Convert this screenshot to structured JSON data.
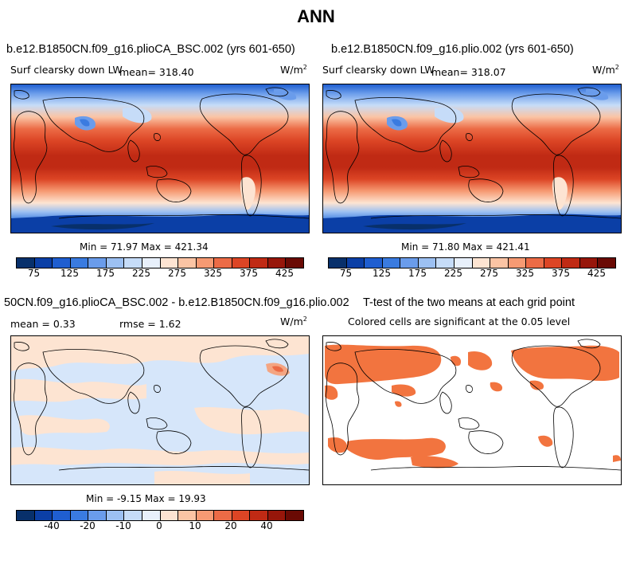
{
  "page": {
    "title": "ANN"
  },
  "panels": {
    "tl": {
      "case": "b.e12.B1850CN.f09_g16.plioCA_BSC.002 (yrs 601-650)",
      "variable": "Surf clearsky down LW",
      "mean_text": "mean=  318.40",
      "units": "W/m",
      "units_sup": "2",
      "minmax": "Min =   71.97 Max =  421.34"
    },
    "tr": {
      "case": "b.e12.B1850CN.f09_g16.plio.002 (yrs 601-650)",
      "variable": "Surf clearsky down LW",
      "mean_text": "mean=  318.07",
      "units": "W/m",
      "units_sup": "2",
      "minmax": "Min =   71.80 Max =  421.41"
    },
    "bl": {
      "case": "50CN.f09_g16.plioCA_BSC.002 - b.e12.B1850CN.f09_g16.plio.002",
      "mean_text": "mean =    0.33",
      "rmse_text": "rmse =    1.62",
      "units": "W/m",
      "units_sup": "2",
      "minmax": "Min =  -9.15 Max =   19.93"
    },
    "br": {
      "title": "T-test of the two means at each grid point",
      "subtitle": "Colored cells are significant at the 0.05 level"
    }
  },
  "chart_data": [
    {
      "type": "heatmap",
      "title": "b.e12.B1850CN.f09_g16.plioCA_BSC.002 (yrs 601-650)",
      "variable": "Surf clearsky down LW",
      "units": "W/m2",
      "mean": 318.4,
      "min": 71.97,
      "max": 421.34,
      "colorbar_levels": [
        75,
        100,
        125,
        150,
        175,
        200,
        225,
        250,
        275,
        300,
        325,
        350,
        375,
        400,
        425
      ],
      "colorbar_tick_labels": [
        "75",
        "125",
        "175",
        "225",
        "275",
        "325",
        "375",
        "425"
      ]
    },
    {
      "type": "heatmap",
      "title": "b.e12.B1850CN.f09_g16.plio.002 (yrs 601-650)",
      "variable": "Surf clearsky down LW",
      "units": "W/m2",
      "mean": 318.07,
      "min": 71.8,
      "max": 421.41,
      "colorbar_levels": [
        75,
        100,
        125,
        150,
        175,
        200,
        225,
        250,
        275,
        300,
        325,
        350,
        375,
        400,
        425
      ],
      "colorbar_tick_labels": [
        "75",
        "125",
        "175",
        "225",
        "275",
        "325",
        "375",
        "425"
      ]
    },
    {
      "type": "heatmap",
      "title": "50CN.f09_g16.plioCA_BSC.002 - b.e12.B1850CN.f09_g16.plio.002",
      "units": "W/m2",
      "mean": 0.33,
      "rmse": 1.62,
      "min": -9.15,
      "max": 19.93,
      "colorbar_levels": [
        -50,
        -40,
        -30,
        -20,
        -15,
        -10,
        -5,
        0,
        5,
        10,
        15,
        20,
        30,
        40,
        50
      ],
      "colorbar_tick_labels": [
        "-40",
        "-20",
        "-10",
        "0",
        "10",
        "20",
        "40"
      ]
    },
    {
      "type": "heatmap",
      "title": "T-test of the two means at each grid point",
      "subtitle": "Colored cells are significant at the 0.05 level",
      "significance_level": 0.05
    }
  ],
  "colors": {
    "abs_scale": [
      "#08306b",
      "#0b3fa6",
      "#1f5ed0",
      "#3a7be0",
      "#6a9ceb",
      "#9cc0f2",
      "#c6dcf8",
      "#e8f0fb",
      "#fde4d2",
      "#fbc4a4",
      "#f69a73",
      "#ec6b46",
      "#dc4525",
      "#c02a14",
      "#97160a",
      "#6a0a04"
    ],
    "diff_scale": [
      "#08306b",
      "#0b3fa6",
      "#1f5ed0",
      "#3a7be0",
      "#6a9ceb",
      "#9cc0f2",
      "#c6dcf8",
      "#e8f0fb",
      "#fde4d2",
      "#fbc4a4",
      "#f69a73",
      "#ec6b46",
      "#dc4525",
      "#c02a14",
      "#97160a",
      "#6a0a04"
    ],
    "significance": "#f2743f"
  }
}
